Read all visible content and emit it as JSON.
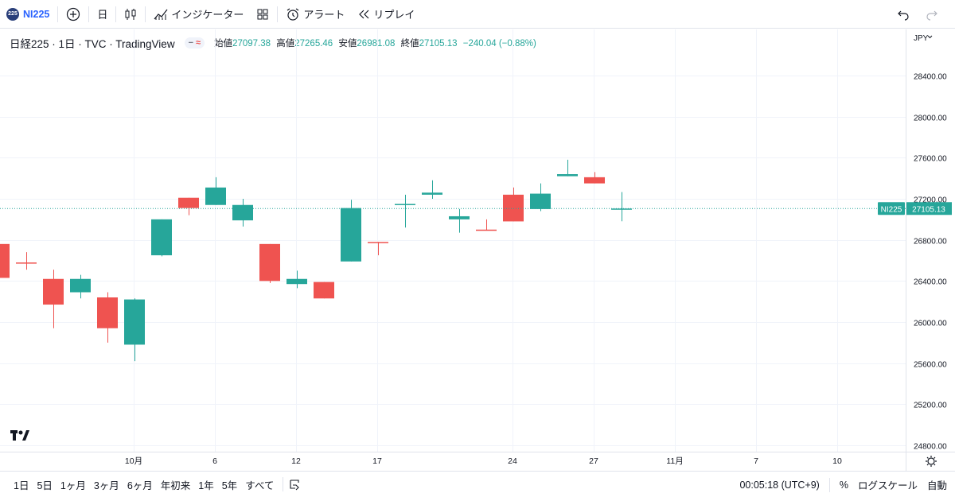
{
  "toolbar": {
    "symbol_badge": "225",
    "symbol": "NI225",
    "add_icon": "plus-circle-icon",
    "interval": "日",
    "chart_type_icon": "candles-icon",
    "indicators": "インジケーター",
    "layout_icon": "grid-icon",
    "alert": "アラート",
    "replay": "リプレイ",
    "undo_icon": "undo-icon",
    "redo_icon": "redo-icon"
  },
  "legend": {
    "title": "日経225 · 1日 · TVC · TradingView",
    "open_label": "始値",
    "open": "27097.38",
    "high_label": "高値",
    "high": "27265.46",
    "low_label": "安値",
    "low": "26981.08",
    "close_label": "終値",
    "close": "27105.13",
    "change": "−240.04 (−0.88%)"
  },
  "price_scale": {
    "currency": "JPY",
    "ticks": [
      "28400.00",
      "28000.00",
      "27600.00",
      "27200.00",
      "26800.00",
      "26400.00",
      "26000.00",
      "25600.00",
      "25200.00",
      "24800.00"
    ],
    "last_label": "NI225",
    "last_price": "27105.13"
  },
  "time_axis": [
    "10月",
    "6",
    "12",
    "17",
    "24",
    "27",
    "11月",
    "7",
    "10"
  ],
  "bottom": {
    "ranges": [
      "1日",
      "5日",
      "1ヶ月",
      "3ヶ月",
      "6ヶ月",
      "年初来",
      "1年",
      "5年",
      "すべて"
    ],
    "time": "00:05:18 (UTC+9)",
    "percent": "%",
    "log": "ログスケール",
    "auto": "自動"
  },
  "colors": {
    "up": "#26a69a",
    "down": "#ef5350",
    "grid": "#f0f3fa",
    "accent": "#2962ff"
  },
  "chart_data": {
    "type": "candlestick",
    "ylim": [
      24700,
      28700
    ],
    "candles": [
      {
        "o": 26760,
        "h": 26760,
        "l": 26430,
        "c": 26430
      },
      {
        "o": 26580,
        "h": 26680,
        "l": 26510,
        "c": 26570
      },
      {
        "o": 26420,
        "h": 26510,
        "l": 25940,
        "c": 26170
      },
      {
        "o": 26290,
        "h": 26460,
        "l": 26230,
        "c": 26420
      },
      {
        "o": 26240,
        "h": 26290,
        "l": 25800,
        "c": 25940
      },
      {
        "o": 25780,
        "h": 26230,
        "l": 25620,
        "c": 26220
      },
      {
        "o": 26650,
        "h": 27000,
        "l": 26640,
        "c": 27000
      },
      {
        "o": 27210,
        "h": 27210,
        "l": 27040,
        "c": 27110
      },
      {
        "o": 27140,
        "h": 27410,
        "l": 27140,
        "c": 27310
      },
      {
        "o": 26990,
        "h": 27200,
        "l": 26930,
        "c": 27140
      },
      {
        "o": 26760,
        "h": 26760,
        "l": 26380,
        "c": 26400
      },
      {
        "o": 26370,
        "h": 26500,
        "l": 26330,
        "c": 26420
      },
      {
        "o": 26390,
        "h": 26390,
        "l": 26230,
        "c": 26230
      },
      {
        "o": 26590,
        "h": 27190,
        "l": 26590,
        "c": 27110
      },
      {
        "o": 26780,
        "h": 26780,
        "l": 26650,
        "c": 26770
      },
      {
        "o": 27150,
        "h": 27240,
        "l": 26920,
        "c": 27150
      },
      {
        "o": 27240,
        "h": 27380,
        "l": 27200,
        "c": 27260
      },
      {
        "o": 27000,
        "h": 27100,
        "l": 26870,
        "c": 27030
      },
      {
        "o": 26900,
        "h": 27000,
        "l": 26890,
        "c": 26890
      },
      {
        "o": 27240,
        "h": 27310,
        "l": 26980,
        "c": 26980
      },
      {
        "o": 27100,
        "h": 27350,
        "l": 27080,
        "c": 27250
      },
      {
        "o": 27420,
        "h": 27580,
        "l": 27420,
        "c": 27440
      },
      {
        "o": 27410,
        "h": 27460,
        "l": 27350,
        "c": 27350
      },
      {
        "o": 27097.38,
        "h": 27265.46,
        "l": 26981.08,
        "c": 27105.13
      }
    ]
  }
}
